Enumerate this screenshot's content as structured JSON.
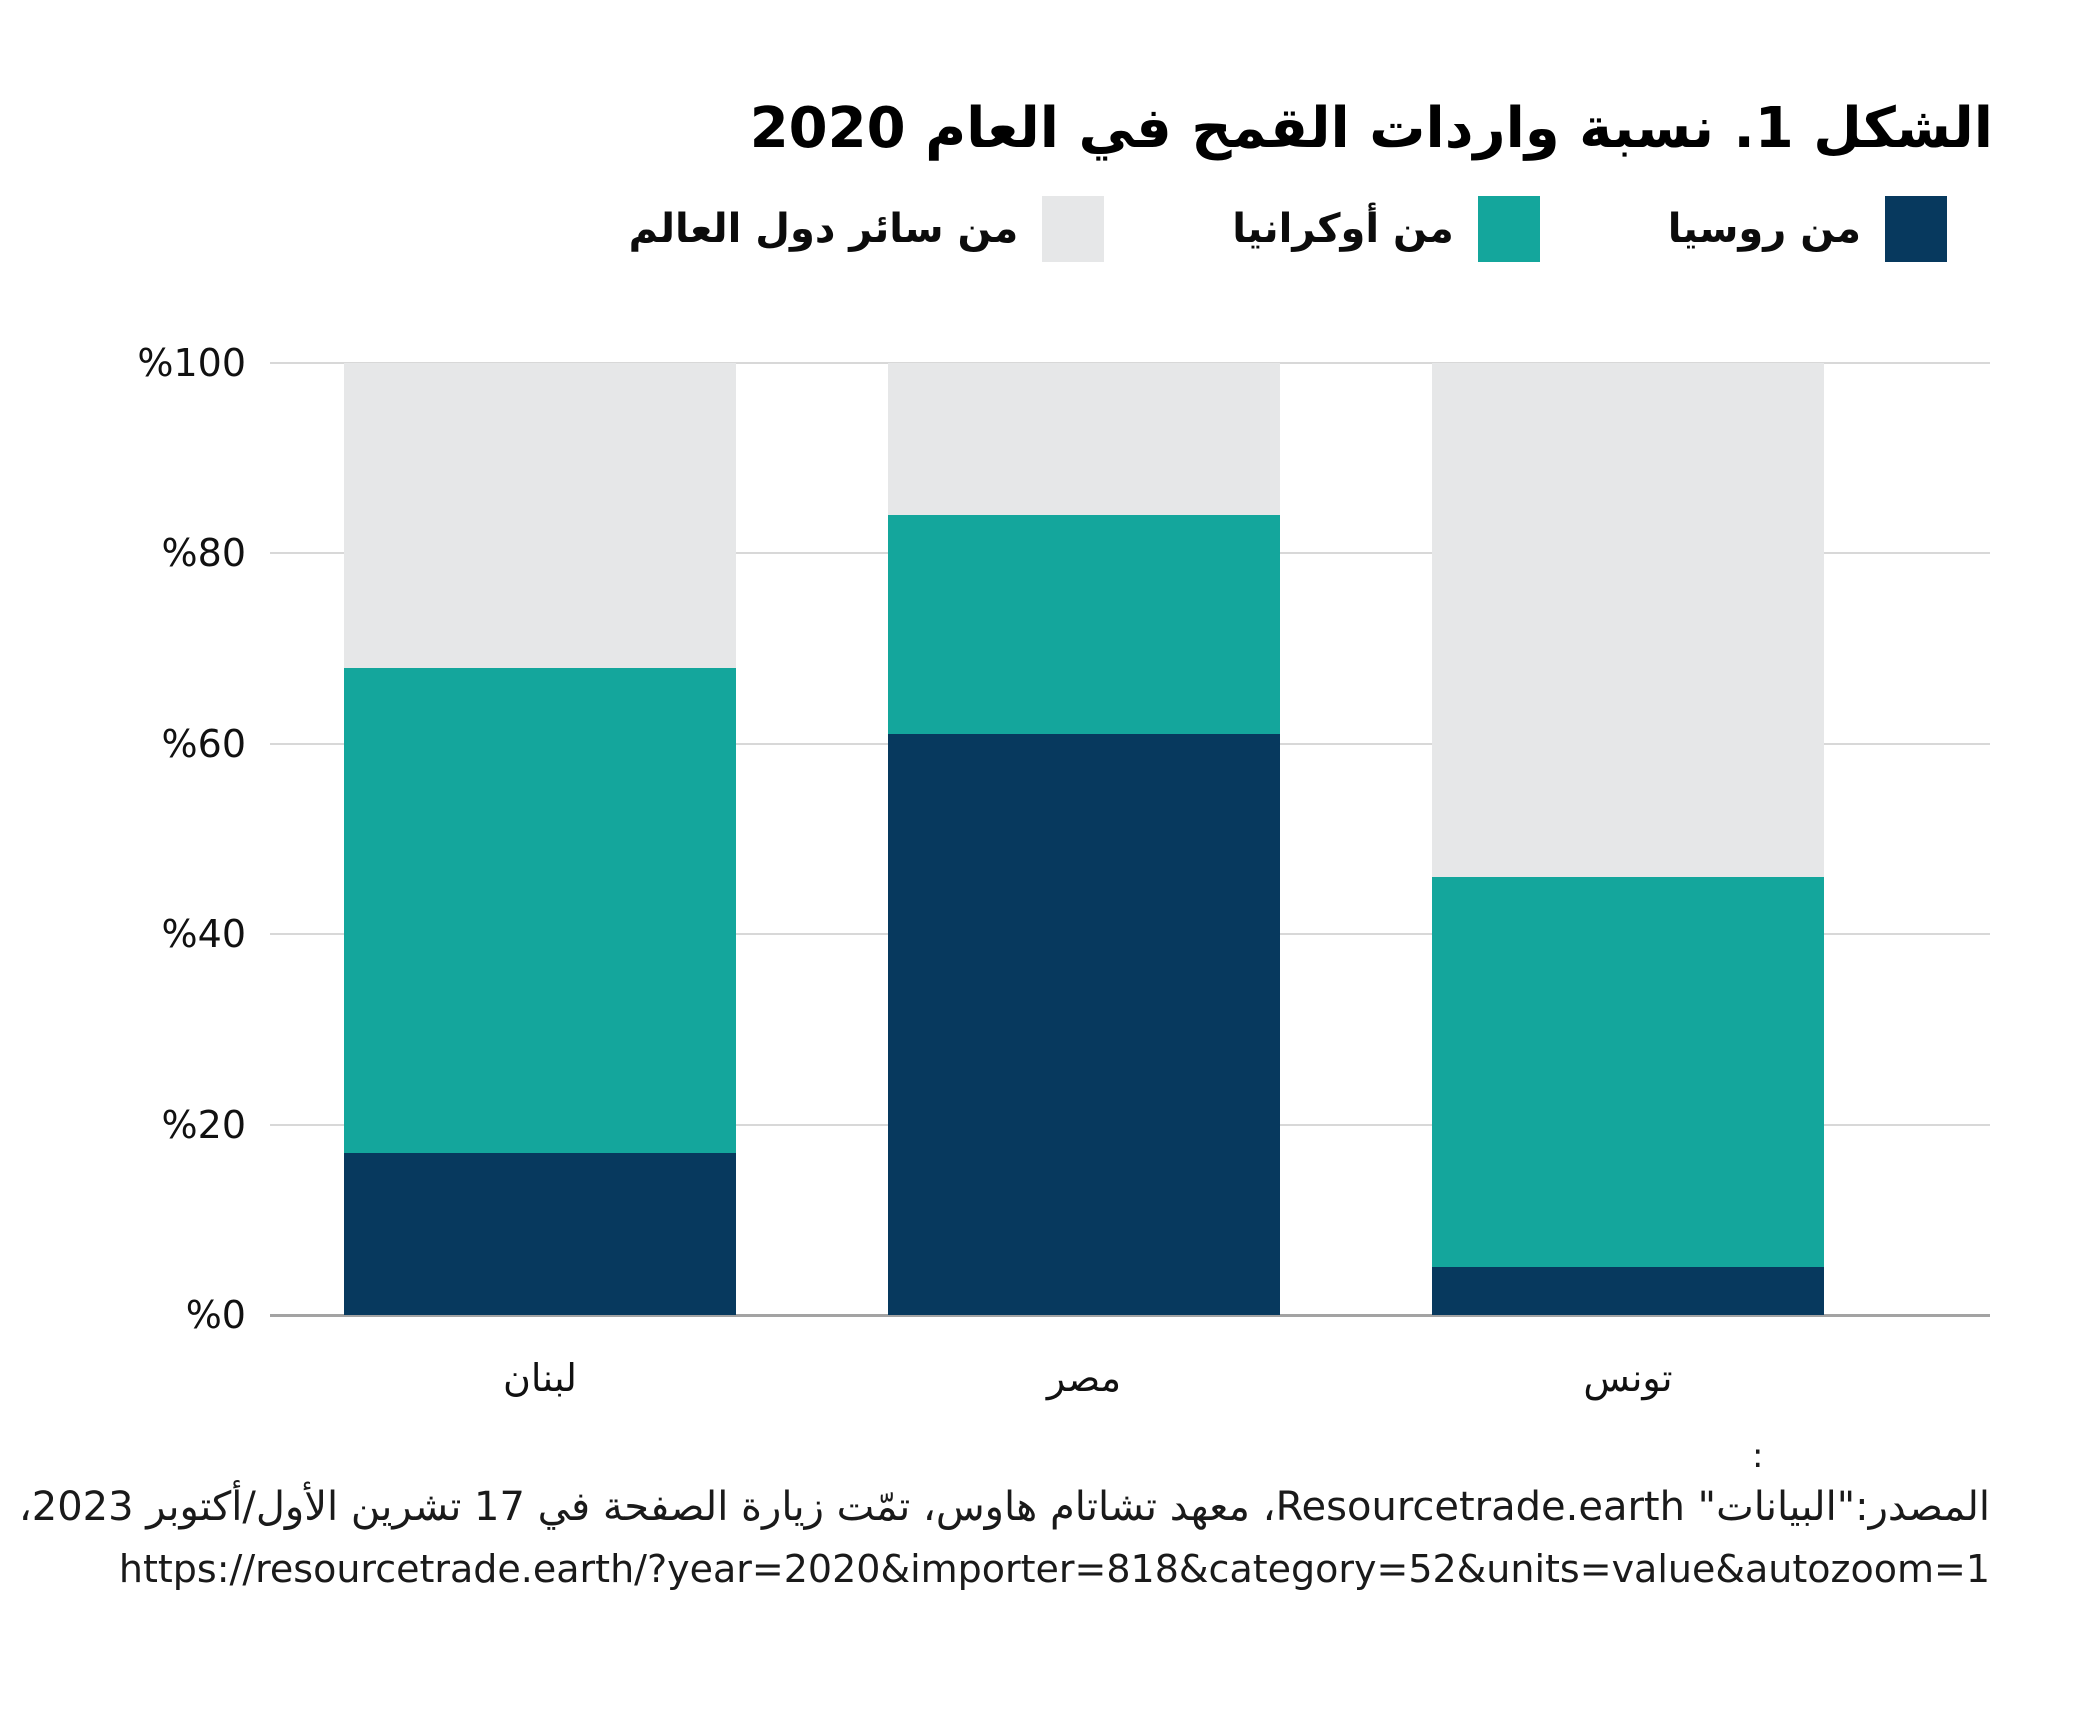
{
  "title": "الشكل 1. نسبة واردات القمح في العام 2020",
  "colors": {
    "russia": "#07395e",
    "ukraine": "#14a69c",
    "world": "#e6e7e8",
    "gridline": "#d8d8d8",
    "axis": "#a3a3a3"
  },
  "legend": {
    "items": [
      {
        "label": "من روسيا",
        "color_key": "russia"
      },
      {
        "label": "من أوكرانيا",
        "color_key": "ukraine"
      },
      {
        "label": "من سائر دول العالم",
        "color_key": "world"
      }
    ]
  },
  "chart_data": {
    "type": "bar",
    "stacked": true,
    "title": "الشكل 1. نسبة واردات القمح في العام 2020",
    "categories": [
      "لبنان",
      "مصر",
      "تونس"
    ],
    "series": [
      {
        "name": "من روسيا",
        "color_key": "russia",
        "values": [
          17,
          61,
          5
        ]
      },
      {
        "name": "من أوكرانيا",
        "color_key": "ukraine",
        "values": [
          51,
          23,
          41
        ]
      },
      {
        "name": "من سائر دول العالم",
        "color_key": "world",
        "values": [
          32,
          16,
          54
        ]
      }
    ],
    "xlabel": "",
    "ylabel": "",
    "ylim": [
      0,
      100
    ],
    "unit": "%",
    "grid": true,
    "legend_position": "top",
    "yticks": [
      {
        "value": 0,
        "label": "%0"
      },
      {
        "value": 20,
        "label": "%20"
      },
      {
        "value": 40,
        "label": "%40"
      },
      {
        "value": 60,
        "label": "%60"
      },
      {
        "value": 80,
        "label": "%80"
      },
      {
        "value": 100,
        "label": "%100"
      }
    ]
  },
  "source": {
    "stray_colon": ":",
    "line1": "المصدر:\"البيانات\" Resourcetrade.earth، معهد تشاتام هاوس، تمّت زيارة الصفحة في 17 تشرين الأول/أكتوبر 2023،",
    "line2": "https://resourcetrade.earth/?year=2020&importer=818&category=52&units=value&autozoom=1"
  }
}
